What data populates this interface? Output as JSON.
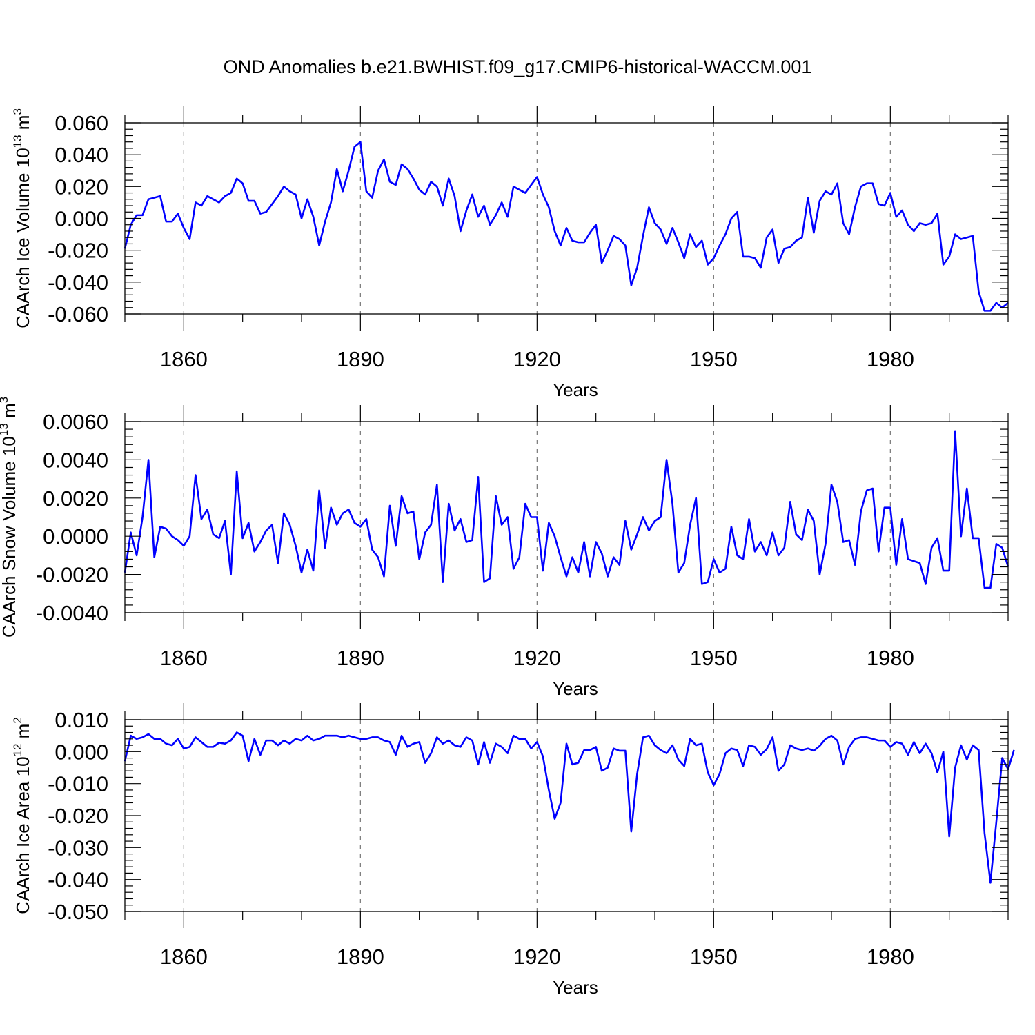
{
  "figure": {
    "title": "OND Anomalies b.e21.BWHIST.f09_g17.CMIP6-historical-WACCM.001"
  },
  "chart_data": [
    {
      "type": "line",
      "title": "OND Anomalies b.e21.BWHIST.f09_g17.CMIP6-historical-WACCM.001",
      "xlabel": "Years",
      "ylabel": "CAArch Ice Volume 10",
      "ylabel_exp": "13",
      "ylabel_unit": " m",
      "ylabel_unit_exp": "3",
      "xlim": [
        1850,
        2000
      ],
      "ylim": [
        -0.06,
        0.06
      ],
      "xticks": [
        1860,
        1890,
        1920,
        1950,
        1980
      ],
      "yticks": [
        "0.060",
        "0.040",
        "0.020",
        "0.000",
        "-0.020",
        "-0.040",
        "-0.060"
      ],
      "ytick_values": [
        0.06,
        0.04,
        0.02,
        0.0,
        -0.02,
        -0.04,
        -0.06
      ],
      "line_color": "#0000ff",
      "grid": "vertical dashed at x ticks",
      "series": [
        {
          "name": "CAArch Ice Volume",
          "x_start": 1850,
          "values": [
            -0.019,
            -0.004,
            0.002,
            0.002,
            0.012,
            0.013,
            0.014,
            -0.002,
            -0.002,
            0.003,
            -0.006,
            -0.013,
            0.01,
            0.008,
            0.014,
            0.012,
            0.01,
            0.014,
            0.016,
            0.025,
            0.022,
            0.011,
            0.011,
            0.003,
            0.004,
            0.009,
            0.014,
            0.02,
            0.017,
            0.015,
            0.0,
            0.012,
            0.001,
            -0.017,
            -0.002,
            0.01,
            0.031,
            0.017,
            0.03,
            0.045,
            0.048,
            0.017,
            0.013,
            0.03,
            0.037,
            0.023,
            0.021,
            0.034,
            0.031,
            0.025,
            0.018,
            0.015,
            0.023,
            0.02,
            0.008,
            0.025,
            0.014,
            -0.008,
            0.005,
            0.015,
            0.001,
            0.008,
            -0.004,
            0.002,
            0.01,
            0.001,
            0.02,
            0.018,
            0.016,
            0.021,
            0.026,
            0.015,
            0.007,
            -0.008,
            -0.017,
            -0.006,
            -0.014,
            -0.015,
            -0.015,
            -0.009,
            -0.004,
            -0.028,
            -0.02,
            -0.011,
            -0.013,
            -0.017,
            -0.042,
            -0.031,
            -0.011,
            0.007,
            -0.003,
            -0.007,
            -0.016,
            -0.006,
            -0.015,
            -0.025,
            -0.01,
            -0.018,
            -0.014,
            -0.029,
            -0.025,
            -0.017,
            -0.01,
            0.0,
            0.004,
            -0.024,
            -0.024,
            -0.025,
            -0.031,
            -0.012,
            -0.007,
            -0.028,
            -0.019,
            -0.018,
            -0.014,
            -0.012,
            0.013,
            -0.009,
            0.011,
            0.017,
            0.015,
            0.022,
            -0.003,
            -0.01,
            0.007,
            0.02,
            0.022,
            0.022,
            0.009,
            0.008,
            0.016,
            0.001,
            0.005,
            -0.004,
            -0.008,
            -0.003,
            -0.004,
            -0.003,
            0.003,
            -0.029,
            -0.024,
            -0.01,
            -0.013,
            -0.012,
            -0.011,
            -0.046,
            -0.058,
            -0.058,
            -0.053,
            -0.056,
            -0.053
          ]
        }
      ]
    },
    {
      "type": "line",
      "xlabel": "Years",
      "ylabel": "CAArch Snow Volume 10",
      "ylabel_exp": "13",
      "ylabel_unit": " m",
      "ylabel_unit_exp": "3",
      "xlim": [
        1850,
        2000
      ],
      "ylim": [
        -0.004,
        0.006
      ],
      "xticks": [
        1860,
        1890,
        1920,
        1950,
        1980
      ],
      "yticks": [
        "0.0060",
        "0.0040",
        "0.0020",
        "0.0000",
        "-0.0020",
        "-0.0040"
      ],
      "ytick_values": [
        0.006,
        0.004,
        0.002,
        0.0,
        -0.002,
        -0.004
      ],
      "line_color": "#0000ff",
      "grid": "vertical dashed at x ticks",
      "series": [
        {
          "name": "CAArch Snow Volume",
          "x_start": 1850,
          "values": [
            -0.0019,
            0.0002,
            -0.001,
            0.001,
            0.004,
            -0.0011,
            0.0005,
            0.0004,
            0.0,
            -0.0002,
            -0.0005,
            0.0,
            0.0032,
            0.0009,
            0.0014,
            0.0001,
            -0.0001,
            0.0008,
            -0.002,
            0.0034,
            -0.0001,
            0.0007,
            -0.0008,
            -0.0003,
            0.0003,
            0.0006,
            -0.0014,
            0.0012,
            0.0006,
            -0.0005,
            -0.0019,
            -0.0007,
            -0.0018,
            0.0024,
            -0.0006,
            0.0015,
            0.0006,
            0.0012,
            0.0014,
            0.0007,
            0.0005,
            0.0009,
            -0.0007,
            -0.0011,
            -0.0021,
            0.0016,
            -0.0005,
            0.0021,
            0.0012,
            0.0013,
            -0.0012,
            0.0002,
            0.0006,
            0.0027,
            -0.0024,
            0.0017,
            0.0003,
            0.0009,
            -0.0003,
            -0.0002,
            0.0031,
            -0.0024,
            -0.0022,
            0.0021,
            0.0006,
            0.001,
            -0.0017,
            -0.0011,
            0.0017,
            0.001,
            0.001,
            -0.0018,
            0.0007,
            0.0,
            -0.0011,
            -0.0021,
            -0.0011,
            -0.0019,
            -0.0003,
            -0.0021,
            -0.0003,
            -0.0009,
            -0.0021,
            -0.0011,
            -0.0015,
            0.0008,
            -0.0007,
            0.0001,
            0.001,
            0.0003,
            0.0008,
            0.001,
            0.004,
            0.0017,
            -0.0019,
            -0.0014,
            0.0006,
            0.002,
            -0.0025,
            -0.0024,
            -0.0012,
            -0.0019,
            -0.0017,
            0.0005,
            -0.001,
            -0.0012,
            0.0009,
            -0.0008,
            -0.0003,
            -0.001,
            0.0002,
            -0.001,
            -0.0006,
            0.0018,
            0.0001,
            -0.0002,
            0.0014,
            0.0008,
            -0.002,
            -0.0004,
            0.0027,
            0.0018,
            -0.0003,
            -0.0002,
            -0.0015,
            0.0013,
            0.0024,
            0.0025,
            -0.0008,
            0.0015,
            0.0015,
            -0.0015,
            0.0009,
            -0.0012,
            -0.0013,
            -0.0014,
            -0.0025,
            -0.0006,
            -0.0001,
            -0.0018,
            -0.0018,
            0.0055,
            0.0,
            0.0025,
            -0.0001,
            -0.0001,
            -0.0027,
            -0.0027,
            -0.0004,
            -0.0006,
            -0.0016
          ]
        }
      ]
    },
    {
      "type": "line",
      "xlabel": "Years",
      "ylabel": "CAArch Ice Area 10",
      "ylabel_exp": "12",
      "ylabel_unit": " m",
      "ylabel_unit_exp": "2",
      "xlim": [
        1850,
        2000
      ],
      "ylim": [
        -0.05,
        0.01
      ],
      "xticks": [
        1860,
        1890,
        1920,
        1950,
        1980
      ],
      "yticks": [
        "0.010",
        "0.000",
        "-0.010",
        "-0.020",
        "-0.030",
        "-0.040",
        "-0.050"
      ],
      "ytick_values": [
        0.01,
        0.0,
        -0.01,
        -0.02,
        -0.03,
        -0.04,
        -0.05
      ],
      "line_color": "#0000ff",
      "grid": "vertical dashed at x ticks",
      "series": [
        {
          "name": "CAArch Ice Area",
          "x_start": 1850,
          "values": [
            -0.003,
            0.005,
            0.004,
            0.0045,
            0.0055,
            0.004,
            0.004,
            0.0025,
            0.002,
            0.004,
            0.001,
            0.0015,
            0.0045,
            0.003,
            0.0015,
            0.0015,
            0.0028,
            0.0025,
            0.0035,
            0.006,
            0.005,
            -0.003,
            0.004,
            -0.001,
            0.0035,
            0.0035,
            0.002,
            0.0035,
            0.0025,
            0.004,
            0.0035,
            0.005,
            0.0035,
            0.004,
            0.005,
            0.005,
            0.005,
            0.0045,
            0.005,
            0.0045,
            0.004,
            0.004,
            0.0045,
            0.0045,
            0.0035,
            0.003,
            -0.001,
            0.005,
            0.0015,
            0.0025,
            0.003,
            -0.0035,
            -0.0005,
            0.0045,
            0.0025,
            0.0035,
            0.002,
            0.0015,
            0.0045,
            0.0035,
            -0.004,
            0.003,
            -0.0035,
            0.0025,
            0.0015,
            -0.0005,
            0.005,
            0.004,
            0.004,
            0.001,
            0.003,
            -0.0015,
            -0.012,
            -0.021,
            -0.016,
            0.0025,
            -0.004,
            -0.0035,
            0.0005,
            0.0005,
            0.0015,
            -0.006,
            -0.005,
            0.001,
            0.0003,
            0.0003,
            -0.025,
            -0.007,
            0.0045,
            0.005,
            0.002,
            0.0005,
            -0.0005,
            0.002,
            -0.0025,
            -0.0045,
            0.004,
            0.002,
            0.0025,
            -0.0065,
            -0.0105,
            -0.007,
            -0.0005,
            0.001,
            0.0005,
            -0.0045,
            0.002,
            0.0015,
            -0.001,
            0.0008,
            0.0045,
            -0.006,
            -0.004,
            0.002,
            0.001,
            0.0005,
            0.001,
            0.0003,
            0.0018,
            0.004,
            0.005,
            0.0035,
            -0.004,
            0.0015,
            0.004,
            0.0045,
            0.0045,
            0.004,
            0.0035,
            0.0035,
            0.0015,
            0.003,
            0.0025,
            -0.001,
            0.003,
            -0.0005,
            0.0025,
            -0.0005,
            -0.0065,
            0.0,
            -0.0265,
            -0.005,
            0.002,
            -0.0025,
            0.002,
            0.0005,
            -0.0255,
            -0.041,
            -0.022,
            -0.002,
            -0.0055,
            0.0005
          ]
        }
      ]
    }
  ]
}
